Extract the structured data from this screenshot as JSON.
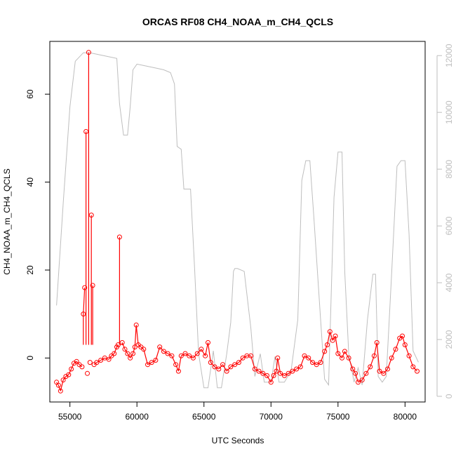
{
  "chart_data": {
    "type": "scatter",
    "title": "ORCAS RF08 CH4_NOAA_m_CH4_QCLS",
    "xlabel": "UTC Seconds",
    "ylabel": "CH4_NOAA_m_CH4_QCLS",
    "xlim": [
      53500,
      81500
    ],
    "ylim": [
      -10,
      72
    ],
    "y2lim": [
      -200,
      12500
    ],
    "x_ticks": [
      "55000",
      "60000",
      "65000",
      "70000",
      "75000",
      "80000"
    ],
    "y_ticks": [
      "0",
      "20",
      "40",
      "60"
    ],
    "y2_ticks": [
      "0",
      "2000",
      "4000",
      "6000",
      "8000",
      "10000",
      "12000"
    ],
    "colors": {
      "points": "#ff0000",
      "secondary": "#bebebe",
      "axes": "#000000"
    },
    "secondary_line": {
      "x": [
        54000,
        54500,
        55000,
        55400,
        56000,
        56500,
        57000,
        57500,
        58000,
        58500,
        58700,
        59000,
        59300,
        59500,
        59700,
        60000,
        60500,
        61000,
        61500,
        62000,
        62500,
        62800,
        63000,
        63300,
        63500,
        64000,
        64300,
        64600,
        65000,
        65300,
        65700,
        66000,
        66300,
        66700,
        67000,
        67200,
        67300,
        67500,
        68000,
        68500,
        68800,
        69200,
        69500,
        70000,
        70300,
        70600,
        71000,
        71500,
        72000,
        72300,
        72600,
        72900,
        73200,
        73700,
        74000,
        74300,
        74700,
        75000,
        75300,
        75500,
        75800,
        76200,
        76500,
        76800,
        77200,
        77600,
        77800,
        78000,
        78300,
        78600,
        79000,
        79400,
        79700,
        80000,
        80300,
        80600,
        81000
      ],
      "y": [
        3200,
        6800,
        10200,
        11800,
        12100,
        12100,
        12050,
        12000,
        11950,
        11900,
        10300,
        9200,
        9200,
        10200,
        11500,
        11700,
        11650,
        11600,
        11550,
        11500,
        11400,
        11000,
        8800,
        8700,
        7300,
        7300,
        4500,
        1500,
        300,
        300,
        1600,
        300,
        300,
        1500,
        2600,
        4400,
        4500,
        4500,
        4400,
        2400,
        700,
        1500,
        500,
        500,
        1400,
        500,
        500,
        900,
        2700,
        7600,
        8300,
        8300,
        6300,
        2700,
        600,
        400,
        7000,
        8600,
        8600,
        4400,
        1500,
        500,
        1000,
        400,
        2700,
        4300,
        4300,
        700,
        500,
        700,
        4300,
        8100,
        8300,
        8300,
        5700,
        1600,
        1200
      ]
    },
    "series": [
      {
        "x": [
          54000,
          54150,
          54300,
          54500,
          54700,
          54900,
          55100,
          55300,
          55500,
          55700,
          55900,
          56000,
          56100,
          56200,
          56300,
          56400,
          56500,
          56600,
          56700,
          56800,
          57000,
          57300,
          57600,
          57900,
          58100,
          58300,
          58500,
          58600,
          58700,
          58900,
          59100,
          59300,
          59500,
          59700,
          59850,
          59950,
          60100,
          60300,
          60500,
          60800,
          61100,
          61400,
          61700,
          62000,
          62300,
          62600,
          62900,
          63100,
          63300,
          63600,
          63900,
          64200,
          64500,
          64800,
          65100,
          65300,
          65500,
          65800,
          66100,
          66400,
          66700,
          67000,
          67300,
          67600,
          67900,
          68200,
          68500,
          68800,
          69100,
          69400,
          69700,
          70000,
          70200,
          70400,
          70500,
          70700,
          71000,
          71300,
          71600,
          71900,
          72200,
          72500,
          72800,
          73100,
          73400,
          73700,
          74000,
          74200,
          74400,
          74600,
          74800,
          75000,
          75300,
          75500,
          75800,
          76100,
          76300,
          76500,
          76800,
          77100,
          77400,
          77700,
          77900,
          78100,
          78400,
          78700,
          79000,
          79300,
          79600,
          79800,
          80000,
          80300,
          80600,
          80900
        ],
        "y": [
          -5.5,
          -6.2,
          -7.5,
          -5.0,
          -4.2,
          -3.8,
          -2.5,
          -1.2,
          -0.8,
          -1.5,
          -2.0,
          10.0,
          16.0,
          51.5,
          -3.5,
          69.5,
          -1.0,
          32.5,
          16.5,
          -1.5,
          -1.0,
          -0.5,
          0.0,
          -0.3,
          0.5,
          1.0,
          2.5,
          3.0,
          27.5,
          3.5,
          2.0,
          1.0,
          0.0,
          1.0,
          2.5,
          7.5,
          3.0,
          2.5,
          2.0,
          -1.5,
          -1.0,
          -0.5,
          2.5,
          1.5,
          1.0,
          0.5,
          -1.5,
          -3.0,
          0.5,
          1.0,
          0.5,
          0.0,
          1.0,
          2.0,
          0.5,
          3.5,
          -1.0,
          -2.0,
          -2.5,
          -1.5,
          -3.0,
          -2.0,
          -1.5,
          -1.0,
          0.0,
          0.5,
          0.5,
          -2.5,
          -3.0,
          -3.5,
          -4.0,
          -5.5,
          -4.0,
          -3.0,
          0.0,
          -3.5,
          -4.0,
          -3.5,
          -3.0,
          -2.5,
          -2.0,
          0.5,
          0.0,
          -1.0,
          -1.5,
          -1.0,
          1.5,
          3.0,
          6.0,
          4.0,
          5.0,
          1.0,
          0.0,
          1.5,
          0.0,
          -2.5,
          -3.5,
          -5.5,
          -5.0,
          -3.5,
          -2.0,
          0.5,
          3.5,
          -3.0,
          -3.5,
          -2.5,
          0.0,
          2.0,
          4.5,
          5.0,
          3.0,
          0.5,
          -2.0,
          -3.0
        ]
      }
    ]
  }
}
